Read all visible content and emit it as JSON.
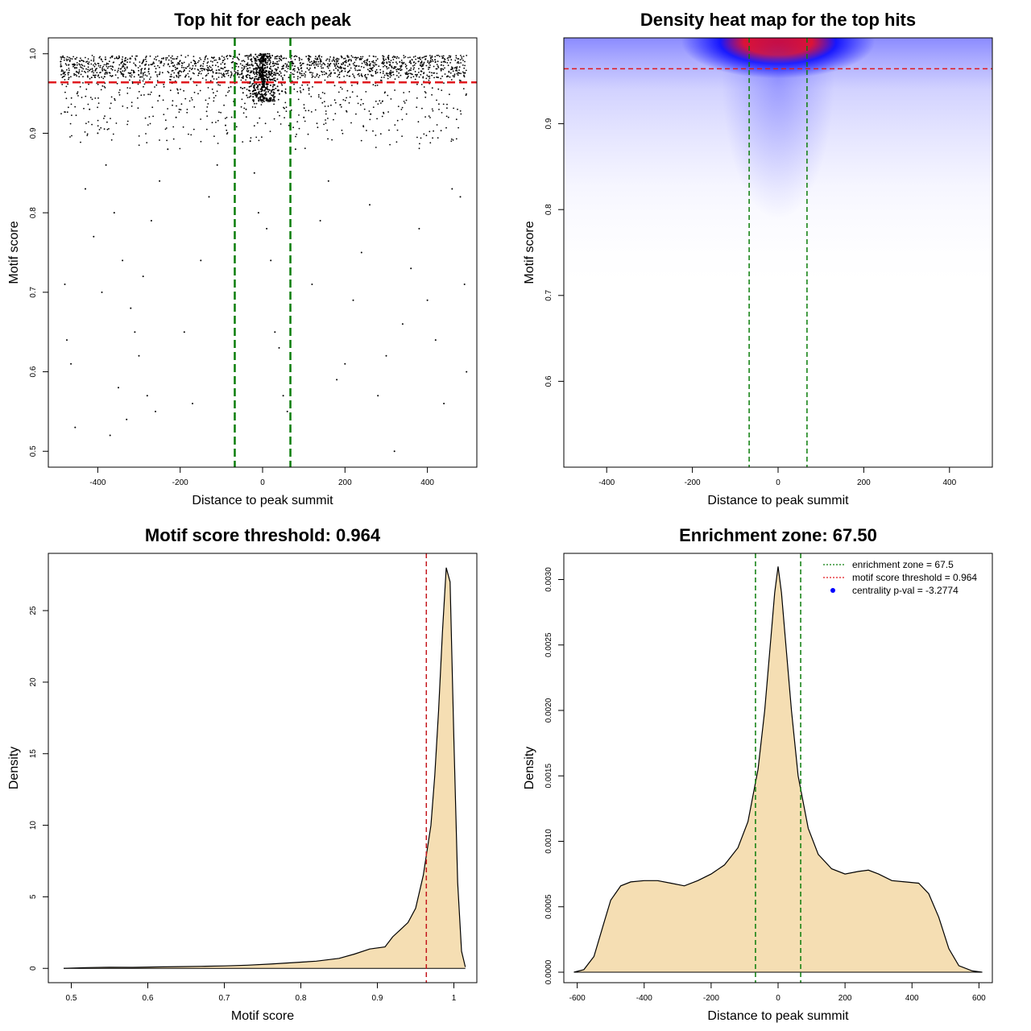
{
  "chart_data": [
    {
      "type": "scatter",
      "title": "Top hit for each peak",
      "xlabel": "Distance to peak summit",
      "ylabel": "Motif score",
      "xlim": [
        -520,
        520
      ],
      "ylim": [
        0.48,
        1.02
      ],
      "xticks": [
        -400,
        -200,
        0,
        200,
        400
      ],
      "yticks": [
        0.5,
        0.6,
        0.7,
        0.8,
        0.9,
        1.0
      ],
      "ytick_labels": [
        "0.5",
        "0.6",
        "0.7",
        "0.8",
        "0.9",
        "1.0"
      ],
      "hlines": [
        {
          "y": 0.964,
          "color": "#e0191e",
          "style": "dashed"
        }
      ],
      "vlines": [
        {
          "x": -67.5,
          "color": "#0a7d0a",
          "style": "dashed"
        },
        {
          "x": 67.5,
          "color": "#0a7d0a",
          "style": "dashed"
        }
      ],
      "point_color": "#000000",
      "points_described": "dense band of points near score 0.97-1.0 across x from -500 to 500, strong cluster near x=0 at score ~1.0, sparse points down to 0.5",
      "sample_points": [
        [
          -490,
          0.99
        ],
        [
          -470,
          0.97
        ],
        [
          -450,
          0.95
        ],
        [
          -420,
          0.93
        ],
        [
          -400,
          0.9
        ],
        [
          -380,
          0.86
        ],
        [
          -360,
          0.8
        ],
        [
          -340,
          0.74
        ],
        [
          -320,
          0.68
        ],
        [
          -300,
          0.62
        ],
        [
          -280,
          0.57
        ],
        [
          -260,
          0.55
        ],
        [
          -480,
          0.71
        ],
        [
          -475,
          0.64
        ],
        [
          -465,
          0.61
        ],
        [
          -455,
          0.53
        ],
        [
          -430,
          0.83
        ],
        [
          -410,
          0.77
        ],
        [
          -390,
          0.7
        ],
        [
          -370,
          0.52
        ],
        [
          -350,
          0.58
        ],
        [
          -330,
          0.54
        ],
        [
          -310,
          0.65
        ],
        [
          -290,
          0.72
        ],
        [
          -270,
          0.79
        ],
        [
          -250,
          0.84
        ],
        [
          -230,
          0.88
        ],
        [
          -210,
          0.92
        ],
        [
          -190,
          0.65
        ],
        [
          -170,
          0.56
        ],
        [
          -150,
          0.74
        ],
        [
          -130,
          0.82
        ],
        [
          -110,
          0.86
        ],
        [
          -90,
          0.91
        ],
        [
          -70,
          0.94
        ],
        [
          -50,
          0.97
        ],
        [
          -40,
          0.93
        ],
        [
          -30,
          0.89
        ],
        [
          -20,
          0.85
        ],
        [
          -10,
          0.8
        ],
        [
          0,
          0.99
        ],
        [
          10,
          0.78
        ],
        [
          20,
          0.74
        ],
        [
          30,
          0.65
        ],
        [
          40,
          0.63
        ],
        [
          50,
          0.57
        ],
        [
          60,
          0.55
        ],
        [
          80,
          0.88
        ],
        [
          100,
          0.92
        ],
        [
          120,
          0.71
        ],
        [
          140,
          0.79
        ],
        [
          160,
          0.84
        ],
        [
          180,
          0.59
        ],
        [
          200,
          0.61
        ],
        [
          220,
          0.69
        ],
        [
          240,
          0.75
        ],
        [
          260,
          0.81
        ],
        [
          280,
          0.57
        ],
        [
          300,
          0.62
        ],
        [
          320,
          0.5
        ],
        [
          340,
          0.66
        ],
        [
          360,
          0.73
        ],
        [
          380,
          0.78
        ],
        [
          400,
          0.69
        ],
        [
          420,
          0.64
        ],
        [
          440,
          0.56
        ],
        [
          460,
          0.83
        ],
        [
          480,
          0.82
        ],
        [
          490,
          0.71
        ],
        [
          495,
          0.6
        ]
      ]
    },
    {
      "type": "heatmap",
      "title": "Density heat map for the top hits",
      "xlabel": "Distance to peak summit",
      "ylabel": "Motif score",
      "xlim": [
        -500,
        500
      ],
      "ylim": [
        0.5,
        1.0
      ],
      "xticks": [
        -400,
        -200,
        0,
        200,
        400
      ],
      "yticks": [
        0.6,
        0.7,
        0.8,
        0.9
      ],
      "ytick_labels": [
        "0.6",
        "0.7",
        "0.8",
        "0.9"
      ],
      "hlines": [
        {
          "y": 0.964,
          "color": "#e0191e",
          "style": "dashed"
        }
      ],
      "vlines": [
        {
          "x": -67.5,
          "color": "#0a7d0a",
          "style": "dashed"
        },
        {
          "x": 67.5,
          "color": "#0a7d0a",
          "style": "dashed"
        }
      ],
      "color_scale": [
        "#ffffff",
        "#0000ff",
        "#ff0000"
      ],
      "hotspot": {
        "x": 0,
        "y": 0.995
      }
    },
    {
      "type": "area",
      "title": "Motif score threshold: 0.964",
      "xlabel": "Motif score",
      "ylabel": "Density",
      "xlim": [
        0.47,
        1.03
      ],
      "ylim": [
        -1,
        29
      ],
      "xticks": [
        0.5,
        0.6,
        0.7,
        0.8,
        0.9,
        1.0
      ],
      "yticks": [
        0,
        5,
        10,
        15,
        20,
        25
      ],
      "fill": "#f5deb3",
      "vlines": [
        {
          "x": 0.964,
          "color": "#c4161c",
          "style": "dashed"
        }
      ],
      "x": [
        0.49,
        0.52,
        0.55,
        0.58,
        0.61,
        0.64,
        0.67,
        0.7,
        0.73,
        0.76,
        0.79,
        0.82,
        0.85,
        0.87,
        0.89,
        0.91,
        0.92,
        0.93,
        0.94,
        0.95,
        0.96,
        0.97,
        0.975,
        0.98,
        0.985,
        0.99,
        0.995,
        1.0,
        1.005,
        1.01,
        1.015
      ],
      "y": [
        0.0,
        0.05,
        0.08,
        0.07,
        0.1,
        0.12,
        0.14,
        0.17,
        0.22,
        0.3,
        0.4,
        0.5,
        0.7,
        1.0,
        1.35,
        1.5,
        2.2,
        2.7,
        3.2,
        4.2,
        6.5,
        10.0,
        13.5,
        18.0,
        23.5,
        28.0,
        27.0,
        16.0,
        6.0,
        1.2,
        0.1
      ]
    },
    {
      "type": "area",
      "title": "Enrichment zone: 67.50",
      "xlabel": "Distance to peak summit",
      "ylabel": "Density",
      "xlim": [
        -640,
        640
      ],
      "ylim": [
        -8e-05,
        0.0032
      ],
      "xticks": [
        -600,
        -400,
        -200,
        0,
        200,
        400,
        600
      ],
      "yticks": [
        0.0,
        0.0005,
        0.001,
        0.0015,
        0.002,
        0.0025,
        0.003
      ],
      "ytick_labels": [
        "0.0000",
        "0.0005",
        "0.0010",
        "0.0015",
        "0.0020",
        "0.0025",
        "0.0030"
      ],
      "fill": "#f5deb3",
      "vlines": [
        {
          "x": -67.5,
          "color": "#0a7d0a",
          "style": "dashed"
        },
        {
          "x": 67.5,
          "color": "#0a7d0a",
          "style": "dashed"
        }
      ],
      "x": [
        -610,
        -580,
        -550,
        -520,
        -500,
        -470,
        -440,
        -400,
        -360,
        -320,
        -280,
        -240,
        -200,
        -160,
        -120,
        -90,
        -60,
        -40,
        -20,
        -10,
        0,
        10,
        20,
        40,
        60,
        90,
        120,
        160,
        200,
        240,
        270,
        300,
        340,
        380,
        420,
        450,
        480,
        510,
        540,
        580,
        610
      ],
      "y": [
        0.0,
        2e-05,
        0.00012,
        0.00038,
        0.00055,
        0.00066,
        0.00069,
        0.0007,
        0.0007,
        0.00068,
        0.00066,
        0.0007,
        0.00075,
        0.00082,
        0.00095,
        0.00115,
        0.00155,
        0.002,
        0.0026,
        0.0029,
        0.0031,
        0.0029,
        0.0026,
        0.002,
        0.0015,
        0.0011,
        0.0009,
        0.00079,
        0.00075,
        0.00077,
        0.00078,
        0.00075,
        0.0007,
        0.00069,
        0.00068,
        0.0006,
        0.00042,
        0.00018,
        5e-05,
        1e-05,
        0.0
      ],
      "legend": [
        {
          "label": "enrichment zone = 67.5",
          "color": "#0a7d0a",
          "symbol": "dotted-line"
        },
        {
          "label": "motif score threshold = 0.964",
          "color": "#e0191e",
          "symbol": "dotted-line"
        },
        {
          "label": "centrality p-val = -3.2774",
          "color": "#0000ff",
          "symbol": "point"
        }
      ],
      "legend_position": "top-right"
    }
  ]
}
